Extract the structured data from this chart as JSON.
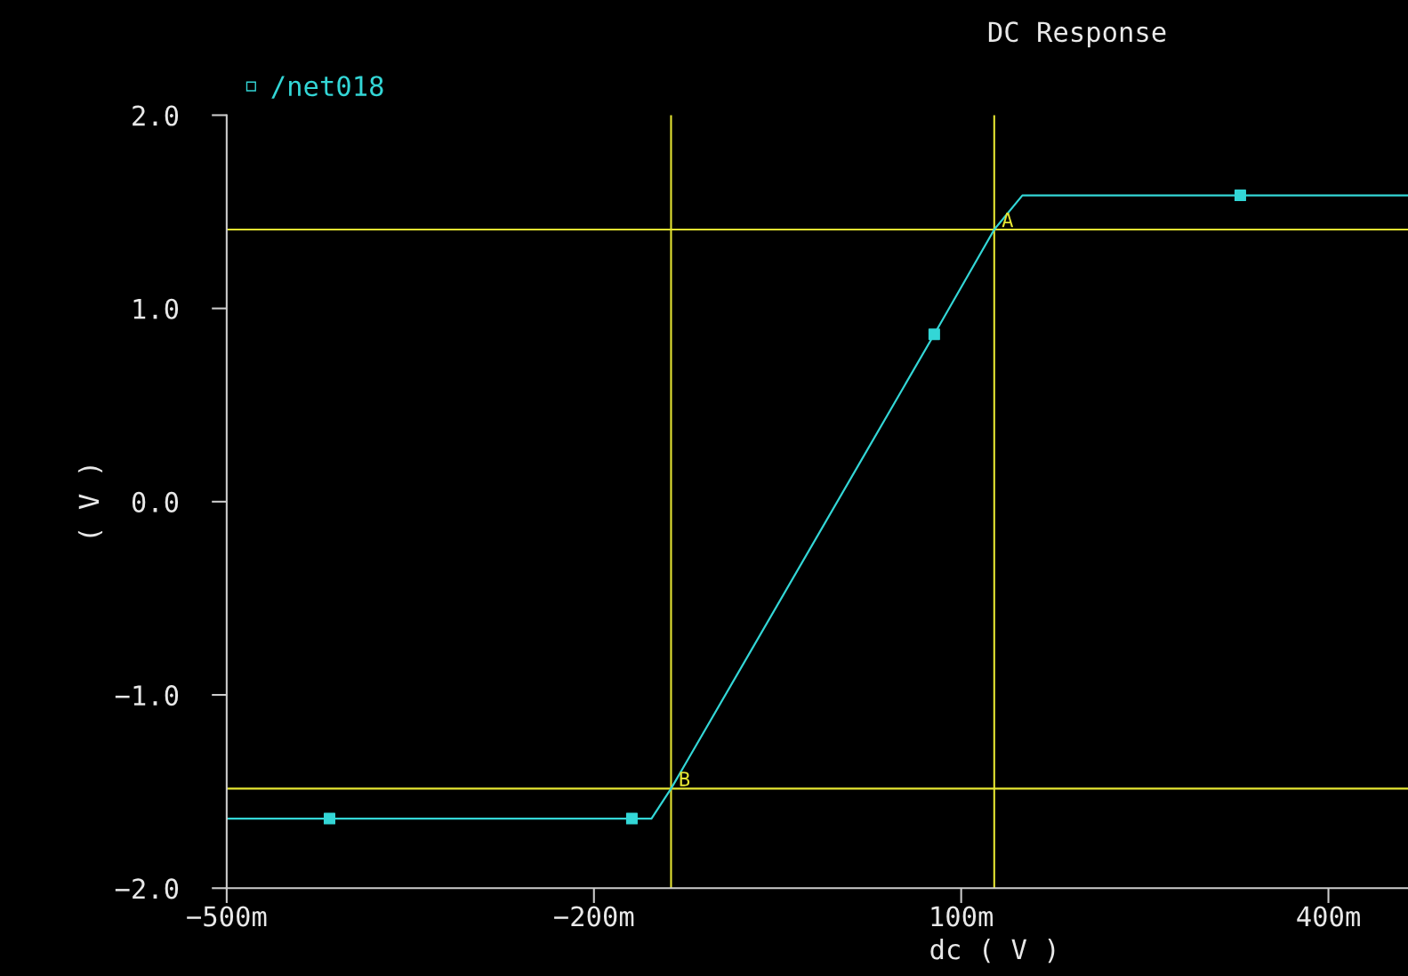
{
  "chart_data": {
    "type": "line",
    "title": "DC Response",
    "xlabel": "dc ( V )",
    "ylabel": "( V )",
    "xlim": [
      -500,
      465
    ],
    "ylim": [
      -2.0,
      2.0
    ],
    "xticks": [
      {
        "value": -500,
        "label": "−500m"
      },
      {
        "value": -200,
        "label": "−200m"
      },
      {
        "value": 100,
        "label": "100m"
      },
      {
        "value": 400,
        "label": "400m"
      }
    ],
    "yticks": [
      {
        "value": 2.0,
        "label": "2.0"
      },
      {
        "value": 1.0,
        "label": "1.0"
      },
      {
        "value": 0.0,
        "label": "0.0"
      },
      {
        "value": -1.0,
        "label": "−1.0"
      },
      {
        "value": -2.0,
        "label": "−2.0"
      }
    ],
    "legend": "top left",
    "grid": false,
    "series": [
      {
        "name": "/net018",
        "color": "#33d6d6",
        "marker": "none",
        "x": [
          -500,
          -153,
          -137,
          78,
          127,
          150,
          465
        ],
        "values": [
          -1.64,
          -1.64,
          -1.485,
          0.866,
          1.408,
          1.585,
          1.585
        ]
      },
      {
        "type": "scatter",
        "color": "#33d6d6",
        "marker": "square",
        "x": [
          -416,
          -169,
          78,
          328
        ],
        "values": [
          -1.64,
          -1.64,
          0.866,
          1.585
        ]
      }
    ],
    "ref_lines": [
      {
        "axis": "x",
        "value": -137,
        "color": "#e6e632"
      },
      {
        "axis": "x",
        "value": 127,
        "color": "#e6e632"
      },
      {
        "axis": "y",
        "value": 1.408,
        "color": "#e6e632"
      },
      {
        "axis": "y",
        "value": -1.485,
        "color": "#e6e632"
      }
    ],
    "annotations": [
      {
        "text": "A",
        "x": 127,
        "y": 1.408
      },
      {
        "text": "B",
        "x": -137,
        "y": -1.485
      }
    ]
  }
}
